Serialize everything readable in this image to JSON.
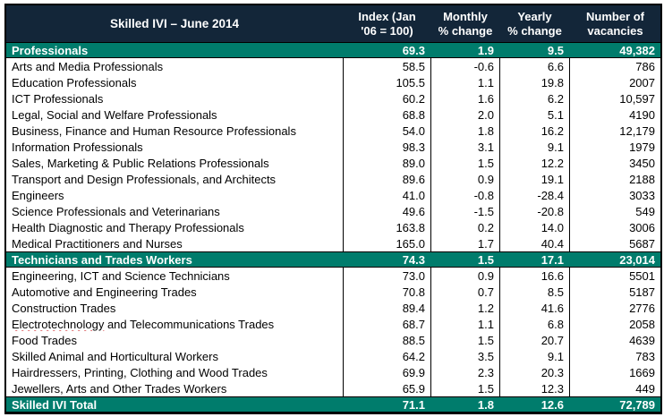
{
  "colors": {
    "header_bg": "#132639",
    "section_band_bg": "#007C6C",
    "grid_line": "#000000",
    "spellcheck_squiggle": "#D13438",
    "header_text": "#FFFFFF",
    "body_text": "#000000"
  },
  "table": {
    "title": "Skilled IVI – June 2014",
    "columns": [
      "Index (Jan\n'06 = 100)",
      "Monthly\n% change",
      "Yearly\n% change",
      "Number of\nvacancies"
    ],
    "rows": [
      {
        "type": "group",
        "label": "Professionals",
        "index": "69.3",
        "monthly": "1.9",
        "yearly": "9.5",
        "vacancies": "49,382"
      },
      {
        "type": "data",
        "label": "Arts and Media Professionals",
        "index": "58.5",
        "monthly": "-0.6",
        "yearly": "6.6",
        "vacancies": "786"
      },
      {
        "type": "data",
        "label": "Education Professionals",
        "index": "105.5",
        "monthly": "1.1",
        "yearly": "19.8",
        "vacancies": "2007"
      },
      {
        "type": "data",
        "label": "ICT Professionals",
        "index": "60.2",
        "monthly": "1.6",
        "yearly": "6.2",
        "vacancies": "10,597"
      },
      {
        "type": "data",
        "label": "Legal, Social and Welfare Professionals",
        "index": "68.8",
        "monthly": "2.0",
        "yearly": "5.1",
        "vacancies": "4190"
      },
      {
        "type": "data",
        "label": "Business, Finance and Human Resource Professionals",
        "index": "54.0",
        "monthly": "1.8",
        "yearly": "16.2",
        "vacancies": "12,179"
      },
      {
        "type": "data",
        "label": "Information Professionals",
        "index": "98.3",
        "monthly": "3.1",
        "yearly": "9.1",
        "vacancies": "1979"
      },
      {
        "type": "data",
        "label": "Sales, Marketing & Public Relations Professionals",
        "index": "89.0",
        "monthly": "1.5",
        "yearly": "12.2",
        "vacancies": "3450"
      },
      {
        "type": "data",
        "label": "Transport and Design Professionals, and Architects",
        "index": "89.6",
        "monthly": "0.9",
        "yearly": "19.1",
        "vacancies": "2188"
      },
      {
        "type": "data",
        "label": "Engineers",
        "index": "41.0",
        "monthly": "-0.8",
        "yearly": "-28.4",
        "vacancies": "3033"
      },
      {
        "type": "data",
        "label": "Science Professionals and Veterinarians",
        "index": "49.6",
        "monthly": "-1.5",
        "yearly": "-20.8",
        "vacancies": "549"
      },
      {
        "type": "data",
        "label": "Health Diagnostic and Therapy Professionals",
        "index": "163.8",
        "monthly": "0.2",
        "yearly": "14.0",
        "vacancies": "3006"
      },
      {
        "type": "data",
        "label": "Medical Practitioners and Nurses",
        "index": "165.0",
        "monthly": "1.7",
        "yearly": "40.4",
        "vacancies": "5687"
      },
      {
        "type": "group",
        "label": "Technicians and Trades Workers",
        "index": "74.3",
        "monthly": "1.5",
        "yearly": "17.1",
        "vacancies": "23,014"
      },
      {
        "type": "data",
        "label": "Engineering, ICT and Science Technicians",
        "index": "73.0",
        "monthly": "0.9",
        "yearly": "16.6",
        "vacancies": "5501"
      },
      {
        "type": "data",
        "label": "Automotive and Engineering Trades",
        "index": "70.8",
        "monthly": "0.7",
        "yearly": "8.5",
        "vacancies": "5187"
      },
      {
        "type": "data",
        "label": "Construction Trades",
        "index": "89.4",
        "monthly": "1.2",
        "yearly": "41.6",
        "vacancies": "2776"
      },
      {
        "type": "data",
        "label": "Electrotechnology and Telecommunications Trades",
        "squiggle": "Electrotechnology",
        "index": "68.7",
        "monthly": "1.1",
        "yearly": "6.8",
        "vacancies": "2058"
      },
      {
        "type": "data",
        "label": "Food Trades",
        "index": "88.5",
        "monthly": "1.5",
        "yearly": "20.7",
        "vacancies": "4639"
      },
      {
        "type": "data",
        "label": "Skilled Animal and Horticultural Workers",
        "index": "64.2",
        "monthly": "3.5",
        "yearly": "9.1",
        "vacancies": "783"
      },
      {
        "type": "data",
        "label": "Hairdressers, Printing, Clothing and Wood Trades",
        "index": "69.9",
        "monthly": "2.3",
        "yearly": "20.3",
        "vacancies": "1669"
      },
      {
        "type": "data",
        "label": "Jewellers, Arts and Other Trades Workers",
        "index": "65.9",
        "monthly": "1.5",
        "yearly": "12.3",
        "vacancies": "449"
      },
      {
        "type": "total",
        "label": "Skilled IVI Total",
        "index": "71.1",
        "monthly": "1.8",
        "yearly": "12.6",
        "vacancies": "72,789"
      }
    ]
  }
}
